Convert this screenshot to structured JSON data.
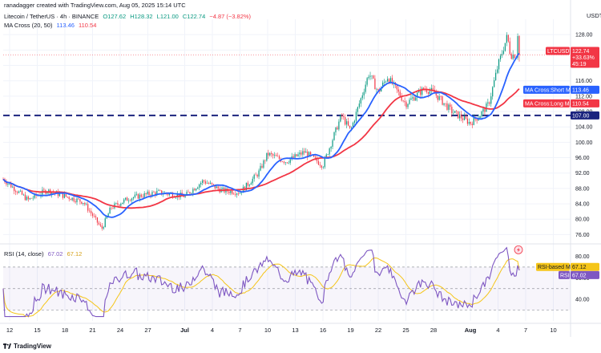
{
  "header": {
    "publisher": "ranadagger created with TradingView.com, Aug 05, 2025 15:14 UTC",
    "symbol": "Litecoin / TetherUS · 4h · BINANCE",
    "ohlc": {
      "open": "O127.62",
      "high": "H128.32",
      "low": "L121.00",
      "close": "C122.74",
      "change": "−4.87 (−3.82%)"
    },
    "ma_indicator": "MA Cross (20, 50)",
    "ma_short_value": "113.46",
    "ma_long_value": "110.54",
    "rsi_indicator": "RSI (14, close)",
    "rsi_value": "67.02",
    "rsi_ma_value": "67.12"
  },
  "price_axis": {
    "currency": "USDT",
    "ticks": [
      "128.00",
      "124.00",
      "120.00",
      "116.00",
      "112.00",
      "108.00",
      "104.00",
      "100.00",
      "96.00",
      "92.00",
      "88.00",
      "84.00",
      "80.00",
      "76.00"
    ]
  },
  "rsi_axis": {
    "ticks": [
      "80.00",
      "60.00",
      "40.00"
    ]
  },
  "labels": {
    "ltc_tag": "LTCUSDT",
    "ltc_price": "122.74",
    "ltc_change": "+33.63%",
    "ltc_countdown": "45:19",
    "ma_short_tag": "MA Cross:Short MA",
    "ma_short_value": "113.46",
    "ma_long_tag": "MA Cross:Long MA",
    "ma_long_value": "110.54",
    "level_value": "107.00",
    "rsi_ma_tag": "RSI-based MA",
    "rsi_ma_value": "67.12",
    "rsi_tag": "RSI",
    "rsi_value": "67.02"
  },
  "x_axis": {
    "ticks": [
      "12",
      "15",
      "18",
      "21",
      "24",
      "27",
      "Jul",
      "4",
      "7",
      "10",
      "13",
      "16",
      "19",
      "22",
      "25",
      "28",
      "Aug",
      "4",
      "7",
      "10"
    ]
  },
  "branding": {
    "name": "TradingView"
  },
  "colors": {
    "up": "#089981",
    "down": "#f23645",
    "ma_short": "#2962ff",
    "ma_long": "#f23645",
    "level_line": "#1a237e",
    "rsi": "#7e57c2",
    "rsi_ma": "#f5c518"
  },
  "chart_data": {
    "type": "candlestick",
    "pair": "LTC/USDT",
    "timeframe": "4h",
    "horizontal_level": 107.0,
    "price_range": [
      74,
      132
    ],
    "rsi_range": [
      20,
      90
    ],
    "rsi_bands": [
      30,
      70
    ],
    "anchors": [
      {
        "date": "Jun 11",
        "close": 91.0
      },
      {
        "date": "Jun 13",
        "close": 87.0
      },
      {
        "date": "Jun 14",
        "close": 85.0
      },
      {
        "date": "Jun 16",
        "close": 87.5
      },
      {
        "date": "Jun 18",
        "close": 86.0
      },
      {
        "date": "Jun 20",
        "close": 84.5
      },
      {
        "date": "Jun 22",
        "close": 77.5
      },
      {
        "date": "Jun 23",
        "close": 83.0
      },
      {
        "date": "Jun 25",
        "close": 85.5
      },
      {
        "date": "Jun 28",
        "close": 87.0
      },
      {
        "date": "Jul 1",
        "close": 86.0
      },
      {
        "date": "Jul 3",
        "close": 90.0
      },
      {
        "date": "Jul 5",
        "close": 87.5
      },
      {
        "date": "Jul 7",
        "close": 87.0
      },
      {
        "date": "Jul 9",
        "close": 92.0
      },
      {
        "date": "Jul 10",
        "close": 97.0
      },
      {
        "date": "Jul 12",
        "close": 95.0
      },
      {
        "date": "Jul 14",
        "close": 97.5
      },
      {
        "date": "Jul 16",
        "close": 94.0
      },
      {
        "date": "Jul 18",
        "close": 107.0
      },
      {
        "date": "Jul 19",
        "close": 103.0
      },
      {
        "date": "Jul 21",
        "close": 118.0
      },
      {
        "date": "Jul 22",
        "close": 113.0
      },
      {
        "date": "Jul 23",
        "close": 117.0
      },
      {
        "date": "Jul 25",
        "close": 110.0
      },
      {
        "date": "Jul 27",
        "close": 114.0
      },
      {
        "date": "Jul 28",
        "close": 113.0
      },
      {
        "date": "Jul 30",
        "close": 108.0
      },
      {
        "date": "Aug 1",
        "close": 105.0
      },
      {
        "date": "Aug 2",
        "close": 107.0
      },
      {
        "date": "Aug 3",
        "close": 110.0
      },
      {
        "date": "Aug 4",
        "close": 120.0
      },
      {
        "date": "Aug 5",
        "close": 127.62
      },
      {
        "date": "Aug 5",
        "close": 122.74
      }
    ]
  }
}
